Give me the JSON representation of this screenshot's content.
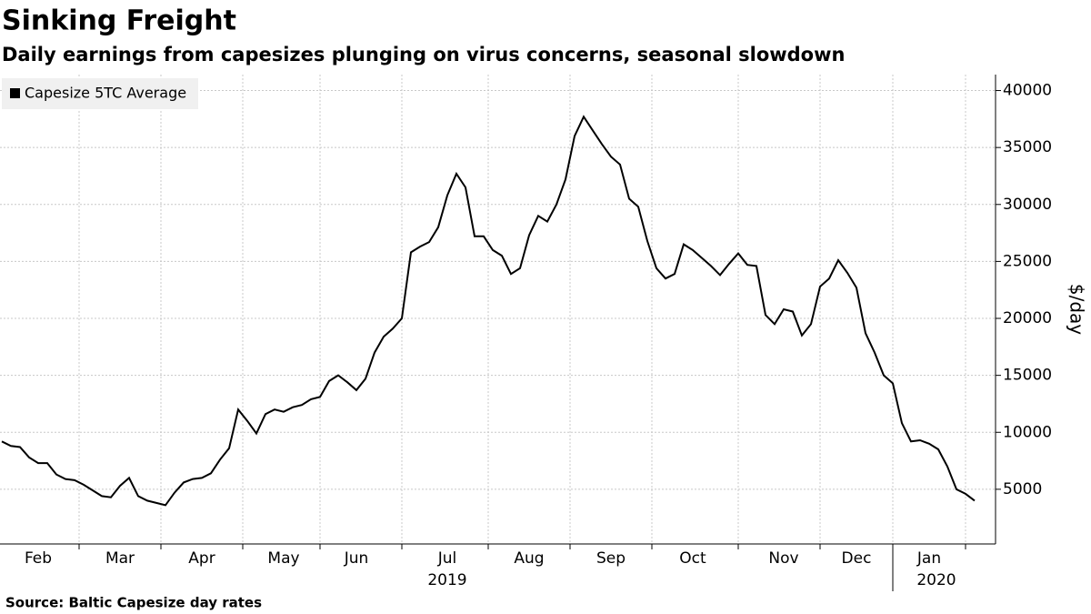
{
  "chart_data": {
    "type": "line",
    "title": "Sinking Freight",
    "subtitle": "Daily earnings from capesizes plunging on virus concerns, seasonal slowdown",
    "source": "Source: Baltic Capesize day rates",
    "y_axis_label": "$/day",
    "x_group_labels": [
      "2019",
      "2020"
    ],
    "categories": [
      null,
      null,
      null,
      null,
      "Feb",
      null,
      null,
      null,
      null,
      null,
      null,
      null,
      null,
      "Mar",
      null,
      null,
      null,
      null,
      null,
      null,
      null,
      null,
      "Apr",
      null,
      null,
      null,
      null,
      null,
      null,
      null,
      null,
      "May",
      null,
      null,
      null,
      null,
      null,
      null,
      null,
      "Jun",
      null,
      null,
      null,
      null,
      null,
      null,
      null,
      null,
      null,
      "Jul",
      null,
      null,
      null,
      null,
      null,
      null,
      null,
      null,
      "Aug",
      null,
      null,
      null,
      null,
      null,
      null,
      null,
      null,
      "Sep",
      null,
      null,
      null,
      null,
      null,
      null,
      null,
      null,
      "Oct",
      null,
      null,
      null,
      null,
      null,
      null,
      null,
      null,
      null,
      "Nov",
      null,
      null,
      null,
      null,
      null,
      null,
      null,
      "Dec",
      null,
      null,
      null,
      null,
      null,
      null,
      null,
      "Jan",
      null,
      null,
      null,
      null,
      null
    ],
    "series": [
      {
        "name": "Capesize 5TC Average",
        "color": "#000000",
        "values": [
          9200,
          8800,
          8700,
          7800,
          7300,
          7300,
          6300,
          5900,
          5800,
          5400,
          4900,
          4400,
          4300,
          5300,
          6000,
          4400,
          4000,
          3800,
          3600,
          4700,
          5600,
          5900,
          6000,
          6400,
          7600,
          8600,
          12000,
          11000,
          9900,
          11600,
          12000,
          11800,
          12200,
          12400,
          12900,
          13100,
          14500,
          15000,
          14400,
          13700,
          14700,
          17000,
          18400,
          19100,
          20000,
          25800,
          26300,
          26700,
          28000,
          30800,
          32700,
          31500,
          27200,
          27200,
          26000,
          25500,
          23900,
          24400,
          27300,
          29000,
          28500,
          30000,
          32200,
          36000,
          37700,
          36500,
          35300,
          34200,
          33500,
          30500,
          29800,
          26800,
          24400,
          23500,
          23900,
          26500,
          26000,
          25300,
          24600,
          23800,
          24800,
          25700,
          24700,
          24600,
          20300,
          19500,
          20800,
          20600,
          18500,
          19500,
          22800,
          23500,
          25100,
          24000,
          22700,
          18700,
          17000,
          15000,
          14300,
          10800,
          9200,
          9300,
          9000,
          8500,
          7000,
          5000,
          4600,
          4000
        ]
      }
    ],
    "ylim": [
      200,
      41400
    ],
    "yticks": [
      5000,
      10000,
      15000,
      20000,
      25000,
      30000,
      35000,
      40000
    ],
    "grid": true,
    "legend": "top-left"
  }
}
